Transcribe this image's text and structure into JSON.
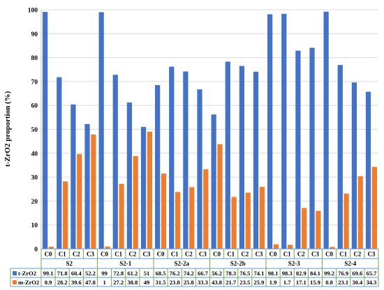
{
  "chart_data": {
    "type": "bar",
    "ylabel": "t-ZrO2 proportion  (%)",
    "ylim": [
      0,
      100
    ],
    "yticks": [
      0,
      10,
      20,
      30,
      40,
      50,
      60,
      70,
      80,
      90,
      100
    ],
    "grid": true,
    "legend": "table-left",
    "groups": [
      {
        "name": "S2",
        "categories": [
          "C0",
          "C1",
          "C2",
          "C3"
        ]
      },
      {
        "name": "S2-1",
        "categories": [
          "C0",
          "C1",
          "C2",
          "C3"
        ]
      },
      {
        "name": "S2-2a",
        "categories": [
          "C0",
          "C1",
          "C2",
          "C3"
        ]
      },
      {
        "name": "S2-2b",
        "categories": [
          "C0",
          "C1",
          "C2",
          "C3"
        ]
      },
      {
        "name": "S2-3",
        "categories": [
          "C0",
          "C1",
          "C2",
          "C3"
        ]
      },
      {
        "name": "S2-4",
        "categories": [
          "C0",
          "C1",
          "C2",
          "C3"
        ]
      }
    ],
    "series": [
      {
        "name": "t-ZrO2",
        "color": "#4472C4",
        "values": [
          99.1,
          71.8,
          60.4,
          52.2,
          99,
          72.8,
          61.2,
          51,
          68.5,
          76.2,
          74.2,
          66.7,
          56.2,
          78.3,
          76.5,
          74.1,
          98.1,
          98.3,
          82.9,
          84.1,
          99.2,
          76.9,
          69.6,
          65.7
        ]
      },
      {
        "name": "m-ZrO2",
        "color": "#ED7D31",
        "values": [
          0.9,
          28.2,
          39.6,
          47.8,
          1,
          27.2,
          38.8,
          49,
          31.5,
          23.8,
          25.8,
          33.3,
          43.8,
          21.7,
          23.5,
          25.9,
          1.9,
          1.7,
          17.1,
          15.9,
          0.8,
          23.1,
          30.4,
          34.3
        ]
      }
    ]
  }
}
